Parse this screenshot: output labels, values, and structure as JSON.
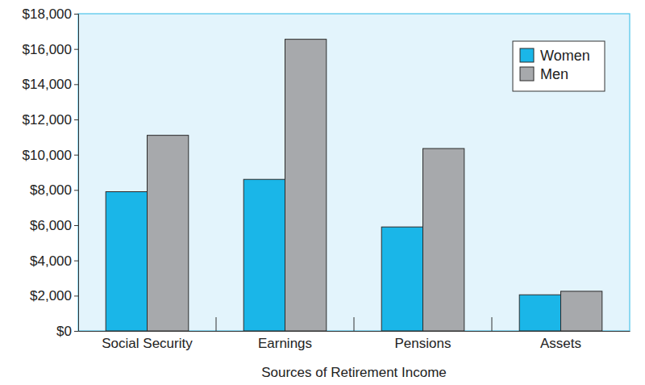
{
  "chart_data": {
    "type": "bar",
    "categories": [
      "Social Security",
      "Earnings",
      "Pensions",
      "Assets"
    ],
    "series": [
      {
        "name": "Women",
        "color": "#1ab6e8",
        "values": [
          7900,
          8600,
          5900,
          2050
        ]
      },
      {
        "name": "Men",
        "color": "#a7a9ac",
        "values": [
          11100,
          16550,
          10350,
          2250
        ]
      }
    ],
    "x_label": "Sources of Retirement Income",
    "ylim": [
      0,
      18000
    ],
    "yticks": [
      {
        "value": 0,
        "label": "$0"
      },
      {
        "value": 2000,
        "label": "$2,000"
      },
      {
        "value": 4000,
        "label": "$4,000"
      },
      {
        "value": 6000,
        "label": "$6,000"
      },
      {
        "value": 8000,
        "label": "$8,000"
      },
      {
        "value": 10000,
        "label": "$10,000"
      },
      {
        "value": 12000,
        "label": "$12,000"
      },
      {
        "value": 14000,
        "label": "$14,000"
      },
      {
        "value": 16000,
        "label": "$16,000"
      },
      {
        "value": 18000,
        "label": "$18,000"
      }
    ],
    "grid": false,
    "legend": "top-right"
  }
}
